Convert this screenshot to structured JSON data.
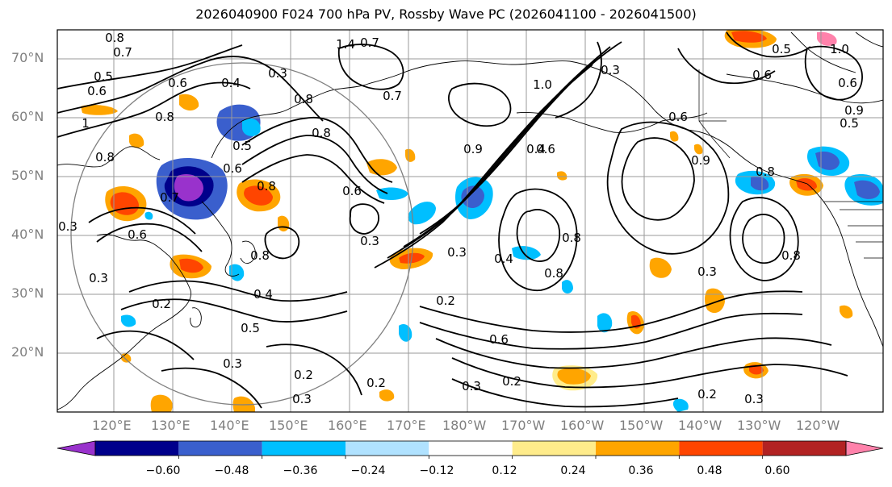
{
  "title": "2026040900 F024 700 hPa PV, Rossby Wave PC (2026041100 - 2026041500)",
  "lat_labels": [
    "70°N",
    "60°N",
    "50°N",
    "40°N",
    "30°N",
    "20°N"
  ],
  "lon_labels": [
    "120°E",
    "130°E",
    "140°E",
    "150°E",
    "160°E",
    "170°E",
    "180°W",
    "170°W",
    "160°W",
    "150°W",
    "140°W",
    "130°W",
    "120°W"
  ],
  "colorbar": {
    "colors": [
      "#9932cc",
      "#00008b",
      "#3a5fcd",
      "#00bfff",
      "#b0e2ff",
      "#ffffff",
      "#ffec8b",
      "#ffa500",
      "#ff4500",
      "#b22222",
      "#ff82ab"
    ],
    "labels": [
      "−0.60",
      "−0.48",
      "−0.36",
      "−0.24",
      "−0.12",
      "0.12",
      "0.24",
      "0.36",
      "0.48",
      "0.60"
    ]
  },
  "contour_labels": [
    "0.8",
    "0.7",
    "1.4",
    "0.7",
    "0.5",
    "0.6",
    "0.6",
    "0.4",
    "0.3",
    "0.7",
    "0.5",
    "0.6",
    "0.6",
    "1",
    "0.8",
    "0.8",
    "1.0",
    "0.3",
    "0.6",
    "0.9",
    "1.0",
    "0.8",
    "0.5",
    "0.8",
    "0.9",
    "0.6",
    "0.5",
    "0.6",
    "0.4",
    "0.9",
    "0.8",
    "0.7",
    "0.8",
    "0.6",
    "0.3",
    "0.6",
    "0.3",
    "0.3",
    "0.8",
    "0.8",
    "0.3",
    "0.4",
    "0.2",
    "0.3",
    "0.8",
    "0.8",
    "0.2",
    "0.4",
    "0.5",
    "0.6",
    "0.3",
    "0.2",
    "0.3",
    "0.2",
    "0.3",
    "0.2",
    "0.3",
    "0.2"
  ]
}
